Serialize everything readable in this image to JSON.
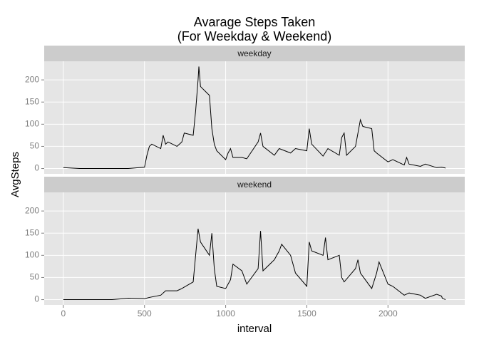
{
  "chart_data": {
    "type": "line",
    "title": [
      "Avarage Steps Taken",
      "(For Weekday & Weekend)"
    ],
    "x_label": "interval",
    "y_label": "AvgSteps",
    "xlim": [
      -118,
      2473
    ],
    "xticks": [
      0,
      500,
      1000,
      1500,
      2000
    ],
    "ylim": [
      -12,
      242
    ],
    "yticks": [
      0,
      50,
      100,
      150,
      200
    ],
    "grid": true,
    "facet": true,
    "series": [
      {
        "name": "weekday",
        "color": "#000000",
        "x": [
          0,
          100,
          200,
          300,
          400,
          500,
          515,
          530,
          545,
          600,
          615,
          630,
          645,
          700,
          715,
          730,
          745,
          800,
          815,
          830,
          835,
          845,
          900,
          915,
          930,
          945,
          1000,
          1015,
          1030,
          1045,
          1100,
          1130,
          1200,
          1215,
          1230,
          1300,
          1330,
          1400,
          1430,
          1500,
          1515,
          1530,
          1600,
          1630,
          1700,
          1715,
          1730,
          1745,
          1800,
          1830,
          1845,
          1900,
          1915,
          1930,
          2000,
          2030,
          2100,
          2115,
          2130,
          2200,
          2230,
          2300,
          2330,
          2355
        ],
        "values": [
          2,
          0,
          0,
          0,
          0,
          3,
          30,
          50,
          55,
          45,
          75,
          55,
          60,
          50,
          55,
          60,
          80,
          75,
          130,
          200,
          230,
          185,
          165,
          90,
          55,
          40,
          20,
          35,
          45,
          25,
          25,
          22,
          60,
          80,
          50,
          30,
          45,
          35,
          45,
          40,
          90,
          55,
          28,
          45,
          30,
          70,
          80,
          30,
          50,
          110,
          95,
          90,
          40,
          35,
          15,
          20,
          8,
          25,
          10,
          5,
          10,
          2,
          3,
          1
        ]
      },
      {
        "name": "weekend",
        "color": "#000000",
        "x": [
          0,
          100,
          200,
          300,
          400,
          500,
          530,
          600,
          630,
          700,
          730,
          800,
          815,
          830,
          845,
          900,
          915,
          930,
          945,
          1000,
          1030,
          1045,
          1100,
          1130,
          1200,
          1215,
          1230,
          1300,
          1330,
          1345,
          1400,
          1430,
          1500,
          1515,
          1530,
          1600,
          1615,
          1630,
          1700,
          1715,
          1730,
          1800,
          1815,
          1830,
          1900,
          1930,
          1945,
          2000,
          2030,
          2100,
          2130,
          2200,
          2230,
          2300,
          2330,
          2335,
          2355
        ],
        "values": [
          0,
          0,
          0,
          0,
          3,
          2,
          5,
          10,
          20,
          20,
          25,
          40,
          100,
          160,
          130,
          100,
          150,
          70,
          30,
          25,
          45,
          80,
          65,
          35,
          70,
          155,
          65,
          90,
          110,
          125,
          100,
          60,
          30,
          130,
          110,
          100,
          140,
          90,
          100,
          50,
          40,
          70,
          90,
          60,
          25,
          60,
          85,
          35,
          30,
          10,
          15,
          10,
          3,
          12,
          8,
          3,
          0
        ]
      }
    ]
  }
}
